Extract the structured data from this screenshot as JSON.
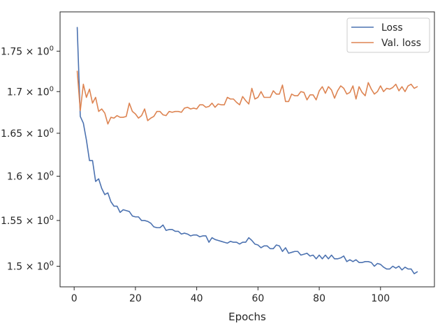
{
  "chart_data": {
    "type": "line",
    "title": "",
    "xlabel": "Epochs",
    "ylabel": "",
    "y_scale": "log",
    "xlim": [
      -4.6,
      117.6
    ],
    "ylim": [
      1.478,
      1.8
    ],
    "x_ticks": [
      {
        "value": 0,
        "label": "0"
      },
      {
        "value": 20,
        "label": "20"
      },
      {
        "value": 40,
        "label": "40"
      },
      {
        "value": 60,
        "label": "60"
      },
      {
        "value": 80,
        "label": "80"
      },
      {
        "value": 100,
        "label": "100"
      }
    ],
    "y_ticks": [
      {
        "value": 1.5,
        "base": "1.5",
        "exp": "0"
      },
      {
        "value": 1.55,
        "base": "1.55",
        "exp": "0"
      },
      {
        "value": 1.6,
        "base": "1.6",
        "exp": "0"
      },
      {
        "value": 1.65,
        "base": "1.65",
        "exp": "0"
      },
      {
        "value": 1.7,
        "base": "1.7",
        "exp": "0"
      },
      {
        "value": 1.75,
        "base": "1.75",
        "exp": "0"
      }
    ],
    "grid": false,
    "legend_position": "top-right",
    "x_start": 1,
    "series": [
      {
        "name": "Loss",
        "color": "#4c72b0",
        "values": [
          1.78,
          1.67,
          1.662,
          1.642,
          1.618,
          1.618,
          1.594,
          1.597,
          1.586,
          1.579,
          1.581,
          1.571,
          1.566,
          1.566,
          1.559,
          1.562,
          1.561,
          1.56,
          1.555,
          1.554,
          1.554,
          1.55,
          1.55,
          1.549,
          1.547,
          1.543,
          1.542,
          1.542,
          1.545,
          1.539,
          1.54,
          1.54,
          1.538,
          1.538,
          1.535,
          1.536,
          1.535,
          1.533,
          1.534,
          1.534,
          1.532,
          1.533,
          1.533,
          1.526,
          1.531,
          1.529,
          1.528,
          1.527,
          1.526,
          1.525,
          1.527,
          1.526,
          1.526,
          1.524,
          1.526,
          1.526,
          1.531,
          1.528,
          1.524,
          1.523,
          1.52,
          1.522,
          1.522,
          1.519,
          1.519,
          1.523,
          1.522,
          1.516,
          1.52,
          1.514,
          1.515,
          1.516,
          1.516,
          1.512,
          1.513,
          1.514,
          1.511,
          1.512,
          1.508,
          1.512,
          1.508,
          1.512,
          1.508,
          1.512,
          1.508,
          1.508,
          1.509,
          1.511,
          1.505,
          1.507,
          1.505,
          1.507,
          1.504,
          1.504,
          1.505,
          1.505,
          1.504,
          1.5,
          1.503,
          1.502,
          1.499,
          1.497,
          1.497,
          1.5,
          1.498,
          1.5,
          1.496,
          1.499,
          1.497,
          1.497,
          1.492,
          1.494
        ]
      },
      {
        "name": "Val. loss",
        "color": "#dd8452",
        "values": [
          1.725,
          1.677,
          1.709,
          1.693,
          1.703,
          1.686,
          1.693,
          1.676,
          1.679,
          1.674,
          1.661,
          1.669,
          1.668,
          1.671,
          1.669,
          1.669,
          1.67,
          1.686,
          1.676,
          1.673,
          1.668,
          1.671,
          1.679,
          1.665,
          1.668,
          1.67,
          1.676,
          1.676,
          1.672,
          1.671,
          1.676,
          1.675,
          1.676,
          1.676,
          1.675,
          1.68,
          1.681,
          1.679,
          1.68,
          1.679,
          1.684,
          1.684,
          1.681,
          1.682,
          1.686,
          1.681,
          1.685,
          1.684,
          1.684,
          1.693,
          1.691,
          1.691,
          1.687,
          1.684,
          1.694,
          1.689,
          1.685,
          1.704,
          1.691,
          1.693,
          1.7,
          1.693,
          1.693,
          1.693,
          1.701,
          1.697,
          1.697,
          1.708,
          1.688,
          1.688,
          1.697,
          1.695,
          1.695,
          1.7,
          1.699,
          1.69,
          1.696,
          1.696,
          1.69,
          1.701,
          1.706,
          1.698,
          1.706,
          1.702,
          1.692,
          1.701,
          1.707,
          1.704,
          1.697,
          1.699,
          1.707,
          1.691,
          1.706,
          1.699,
          1.695,
          1.711,
          1.703,
          1.697,
          1.7,
          1.707,
          1.7,
          1.704,
          1.703,
          1.705,
          1.709,
          1.701,
          1.706,
          1.7,
          1.707,
          1.709,
          1.704,
          1.706
        ]
      }
    ]
  }
}
